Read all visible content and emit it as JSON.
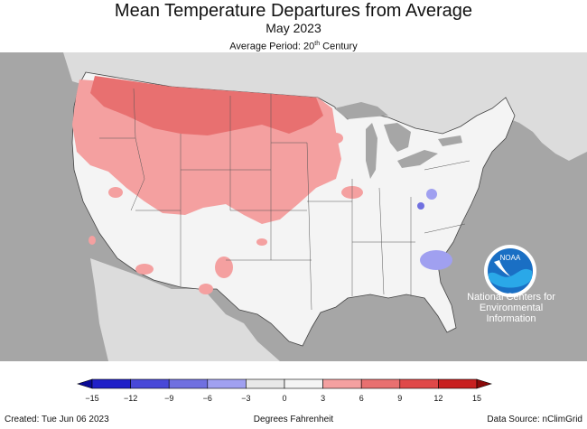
{
  "header": {
    "title": "Mean Temperature Departures from Average",
    "subtitle": "May 2023",
    "period_prefix": "Average Period: 20",
    "period_sup": "th",
    "period_suffix": " Century"
  },
  "logo": {
    "badge_text": "NOAA",
    "org_line1": "National Centers for",
    "org_line2": "Environmental",
    "org_line3": "Information"
  },
  "legend": {
    "ticks": [
      "−15",
      "−12",
      "−9",
      "−6",
      "−3",
      "0",
      "3",
      "6",
      "9",
      "12",
      "15"
    ],
    "colors": [
      "#2020c8",
      "#4848d8",
      "#7070e0",
      "#a0a0f0",
      "#e8e8e8",
      "#f4f4f4",
      "#f4a0a0",
      "#e87070",
      "#e04848",
      "#c82020"
    ],
    "unit": "Degrees Fahrenheit"
  },
  "footer": {
    "created": "Created: Tue Jun 06 2023",
    "source": "Data Source: nClimGrid"
  },
  "colors": {
    "ocean": "#a6a6a6",
    "land_outside": "#dcdcdc",
    "conus": "#f4f4f4",
    "warm_1": "#f4a0a0",
    "warm_2": "#e87070",
    "cool_1": "#a0a0f0",
    "cool_2": "#7070e0",
    "lakes": "#a6a6a6",
    "noaa_blue": "#1a6fc4"
  }
}
